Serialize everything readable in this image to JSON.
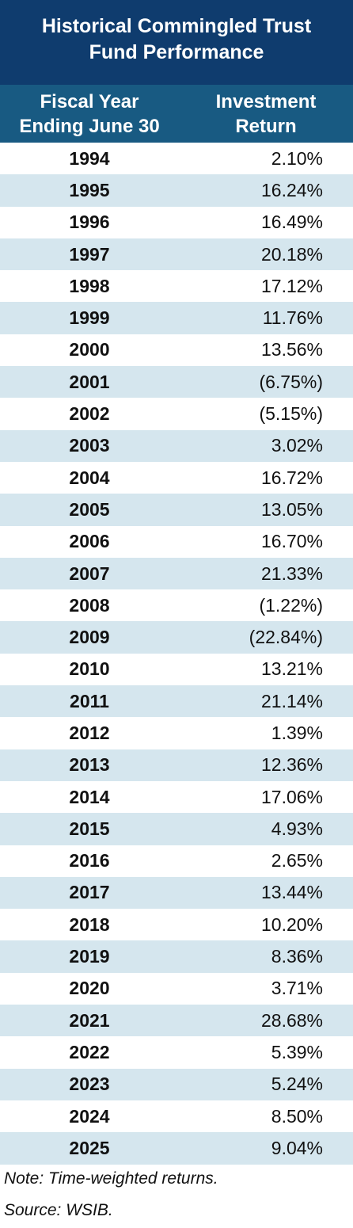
{
  "title": [
    "Historical Commingled Trust",
    "Fund Performance"
  ],
  "table": {
    "columns": [
      [
        "Fiscal Year",
        "Ending June 30"
      ],
      [
        "Investment",
        "Return"
      ]
    ],
    "rows": [
      [
        "1994",
        "2.10%"
      ],
      [
        "1995",
        "16.24%"
      ],
      [
        "1996",
        "16.49%"
      ],
      [
        "1997",
        "20.18%"
      ],
      [
        "1998",
        "17.12%"
      ],
      [
        "1999",
        "11.76%"
      ],
      [
        "2000",
        "13.56%"
      ],
      [
        "2001",
        "(6.75%)"
      ],
      [
        "2002",
        "(5.15%)"
      ],
      [
        "2003",
        "3.02%"
      ],
      [
        "2004",
        "16.72%"
      ],
      [
        "2005",
        "13.05%"
      ],
      [
        "2006",
        "16.70%"
      ],
      [
        "2007",
        "21.33%"
      ],
      [
        "2008",
        "(1.22%)"
      ],
      [
        "2009",
        "(22.84%)"
      ],
      [
        "2010",
        "13.21%"
      ],
      [
        "2011",
        "21.14%"
      ],
      [
        "2012",
        "1.39%"
      ],
      [
        "2013",
        "12.36%"
      ],
      [
        "2014",
        "17.06%"
      ],
      [
        "2015",
        "4.93%"
      ],
      [
        "2016",
        "2.65%"
      ],
      [
        "2017",
        "13.44%"
      ],
      [
        "2018",
        "10.20%"
      ],
      [
        "2019",
        "8.36%"
      ],
      [
        "2020",
        "3.71%"
      ],
      [
        "2021",
        "28.68%"
      ],
      [
        "2022",
        "5.39%"
      ],
      [
        "2023",
        "5.24%"
      ],
      [
        "2024",
        "8.50%"
      ],
      [
        "2025",
        "9.04%"
      ]
    ]
  },
  "notes": [
    "Note: Time-weighted returns.",
    "Source: WSIB."
  ]
}
